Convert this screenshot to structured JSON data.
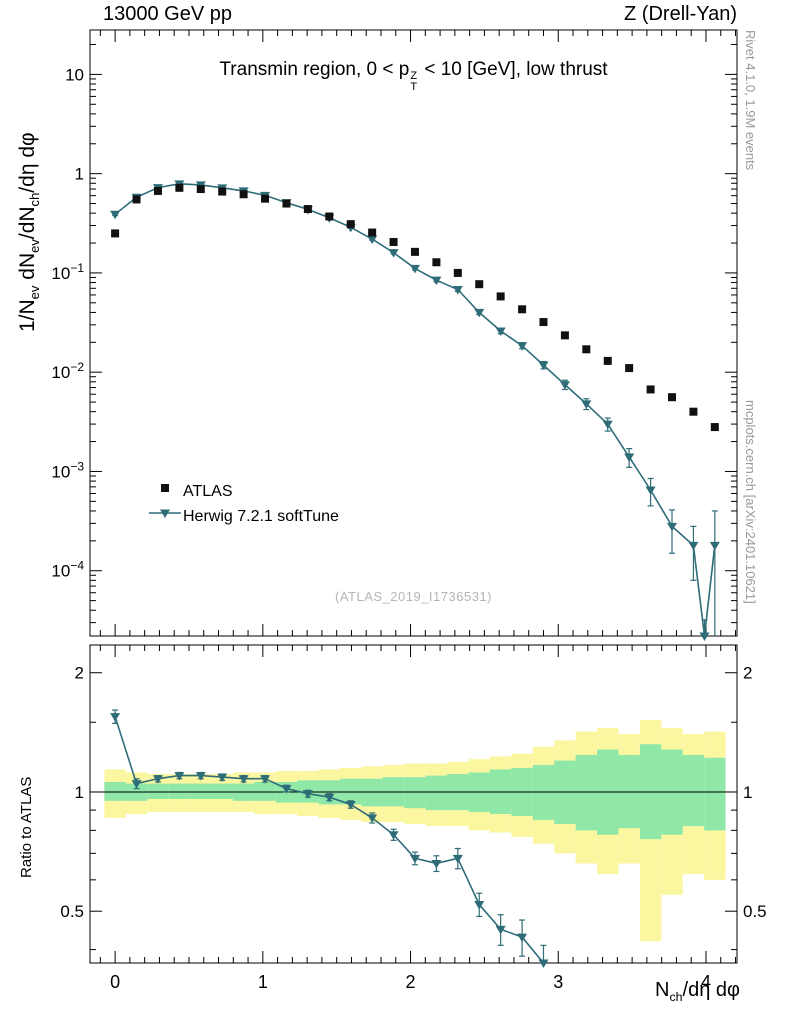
{
  "header": {
    "left": "13000 GeV pp",
    "right": "Z (Drell-Yan)"
  },
  "title": {
    "p0": "Transmin region, 0 < p",
    "sup": "Z",
    "sub": "T",
    "p1": " < 10 [GeV], low thrust"
  },
  "watermark": "(ATLAS_2019_I1736531)",
  "side_notes": {
    "top": "Rivet 4.1.0,  1.9M events",
    "bottom": "mcplots.cern.ch [arXiv:2401.10621]"
  },
  "y_main_label": {
    "p0": "1/N",
    "s0": "ev",
    "p1": " dN",
    "s1": "ev",
    "p2": "/dN",
    "s2": "ch",
    "p3": "/dη dφ"
  },
  "x_label": {
    "p0": "N",
    "s0": "ch",
    "p1": "/dη dφ"
  },
  "axes": {
    "ratio_label": "Ratio to ATLAS",
    "x_major_ticks": [
      0,
      1,
      2,
      3,
      4
    ],
    "y_main_decades": [
      1,
      0,
      -1,
      -2,
      -3,
      -4
    ],
    "ratio_ticks": [
      0.5,
      1,
      2
    ]
  },
  "legend": [
    {
      "label": "ATLAS",
      "marker": "square",
      "color": "#111111"
    },
    {
      "label": "Herwig 7.2.1 softTune",
      "marker": "triangle-down",
      "color": "#2e6d78"
    }
  ],
  "colors": {
    "atlas": "#111111",
    "herwig": "#2e6d78",
    "band_yellow": "#fbf6a0",
    "band_green": "#8fe8a8",
    "frame": "#000000",
    "side_text": "#999999",
    "watermark": "#b5b5b5"
  },
  "chart_data": [
    {
      "type": "line",
      "panel": "main",
      "y_scale": "log",
      "xlim": [
        -0.17,
        4.21
      ],
      "ylim": [
        2.2e-05,
        28
      ],
      "series": [
        {
          "name": "ATLAS",
          "marker": "square",
          "color": "#111111",
          "line": false,
          "x": [
            0,
            0.145,
            0.29,
            0.435,
            0.58,
            0.725,
            0.87,
            1.015,
            1.16,
            1.305,
            1.45,
            1.595,
            1.74,
            1.885,
            2.03,
            2.175,
            2.32,
            2.465,
            2.61,
            2.755,
            2.9,
            3.045,
            3.19,
            3.335,
            3.48,
            3.625,
            3.77,
            3.915,
            4.06
          ],
          "y": [
            0.25,
            0.55,
            0.67,
            0.72,
            0.7,
            0.66,
            0.62,
            0.56,
            0.5,
            0.44,
            0.37,
            0.31,
            0.255,
            0.205,
            0.163,
            0.128,
            0.1,
            0.077,
            0.058,
            0.043,
            0.032,
            0.0235,
            0.017,
            0.013,
            0.011,
            0.0067,
            0.0056,
            0.004,
            0.0028
          ]
        },
        {
          "name": "Herwig 7.2.1 softTune",
          "marker": "triangle-down",
          "color": "#2e6d78",
          "line": true,
          "x": [
            0,
            0.145,
            0.29,
            0.435,
            0.58,
            0.725,
            0.87,
            1.015,
            1.16,
            1.305,
            1.45,
            1.595,
            1.74,
            1.885,
            2.03,
            2.175,
            2.32,
            2.465,
            2.61,
            2.755,
            2.9,
            3.045,
            3.19,
            3.335,
            3.48,
            3.625,
            3.77,
            3.915,
            3.99,
            4.06
          ],
          "y": [
            0.39,
            0.578,
            0.724,
            0.79,
            0.77,
            0.72,
            0.67,
            0.605,
            0.51,
            0.436,
            0.359,
            0.288,
            0.219,
            0.16,
            0.111,
            0.0845,
            0.068,
            0.04,
            0.026,
            0.0185,
            0.0118,
            0.0075,
            0.0048,
            0.003,
            0.0014,
            0.00065,
            0.00028,
            0.00018,
            2.2e-05,
            0.00018
          ],
          "yerr": [
            0.012,
            0.012,
            0.012,
            0.012,
            0.012,
            0.011,
            0.011,
            0.01,
            0.009,
            0.008,
            0.007,
            0.006,
            0.005,
            0.0045,
            0.004,
            0.0033,
            0.0028,
            0.002,
            0.0016,
            0.0013,
            0.001,
            0.0008,
            0.0006,
            0.00045,
            0.0003,
            0.0002,
            0.00013,
            0.0001,
            1e-05,
            0.00022
          ]
        }
      ]
    },
    {
      "type": "ratio",
      "panel": "ratio",
      "y_scale": "log",
      "xlim": [
        -0.17,
        4.21
      ],
      "ylim": [
        0.37,
        2.35
      ],
      "ref_line": 1,
      "bands": {
        "half_width": 0.0725,
        "x": [
          0,
          0.145,
          0.29,
          0.435,
          0.58,
          0.725,
          0.87,
          1.015,
          1.16,
          1.305,
          1.45,
          1.595,
          1.74,
          1.885,
          2.03,
          2.175,
          2.32,
          2.465,
          2.61,
          2.755,
          2.9,
          3.045,
          3.19,
          3.335,
          3.48,
          3.625,
          3.77,
          3.915,
          4.06
        ],
        "yellow_lo": [
          0.86,
          0.88,
          0.89,
          0.89,
          0.89,
          0.89,
          0.89,
          0.88,
          0.88,
          0.87,
          0.86,
          0.85,
          0.84,
          0.84,
          0.83,
          0.82,
          0.82,
          0.8,
          0.79,
          0.77,
          0.74,
          0.7,
          0.66,
          0.62,
          0.66,
          0.42,
          0.55,
          0.62,
          0.6
        ],
        "yellow_hi": [
          1.14,
          1.12,
          1.11,
          1.11,
          1.11,
          1.11,
          1.12,
          1.12,
          1.13,
          1.13,
          1.14,
          1.15,
          1.16,
          1.17,
          1.18,
          1.18,
          1.19,
          1.21,
          1.23,
          1.25,
          1.3,
          1.35,
          1.42,
          1.45,
          1.4,
          1.52,
          1.45,
          1.4,
          1.42
        ],
        "green_lo": [
          0.95,
          0.95,
          0.96,
          0.96,
          0.96,
          0.96,
          0.95,
          0.95,
          0.94,
          0.94,
          0.93,
          0.93,
          0.92,
          0.92,
          0.91,
          0.9,
          0.9,
          0.89,
          0.88,
          0.87,
          0.85,
          0.83,
          0.8,
          0.78,
          0.81,
          0.76,
          0.78,
          0.82,
          0.8
        ],
        "green_hi": [
          1.06,
          1.05,
          1.05,
          1.05,
          1.05,
          1.05,
          1.05,
          1.06,
          1.06,
          1.07,
          1.07,
          1.08,
          1.08,
          1.09,
          1.09,
          1.1,
          1.11,
          1.12,
          1.14,
          1.15,
          1.17,
          1.2,
          1.24,
          1.28,
          1.24,
          1.32,
          1.28,
          1.24,
          1.22
        ]
      },
      "series": [
        {
          "name": "Herwig over ATLAS",
          "marker": "triangle-down",
          "color": "#2e6d78",
          "line": true,
          "x": [
            0,
            0.145,
            0.29,
            0.435,
            0.58,
            0.725,
            0.87,
            1.015,
            1.16,
            1.305,
            1.45,
            1.595,
            1.74,
            1.885,
            2.03,
            2.175,
            2.32,
            2.465,
            2.61,
            2.755,
            2.9
          ],
          "y": [
            1.55,
            1.05,
            1.08,
            1.1,
            1.1,
            1.09,
            1.08,
            1.08,
            1.02,
            0.99,
            0.97,
            0.93,
            0.86,
            0.78,
            0.68,
            0.66,
            0.68,
            0.52,
            0.45,
            0.43,
            0.37
          ],
          "yerr": [
            0.06,
            0.03,
            0.02,
            0.02,
            0.02,
            0.02,
            0.02,
            0.02,
            0.02,
            0.02,
            0.02,
            0.02,
            0.025,
            0.025,
            0.025,
            0.03,
            0.04,
            0.035,
            0.04,
            0.045,
            0.04
          ]
        }
      ]
    }
  ]
}
